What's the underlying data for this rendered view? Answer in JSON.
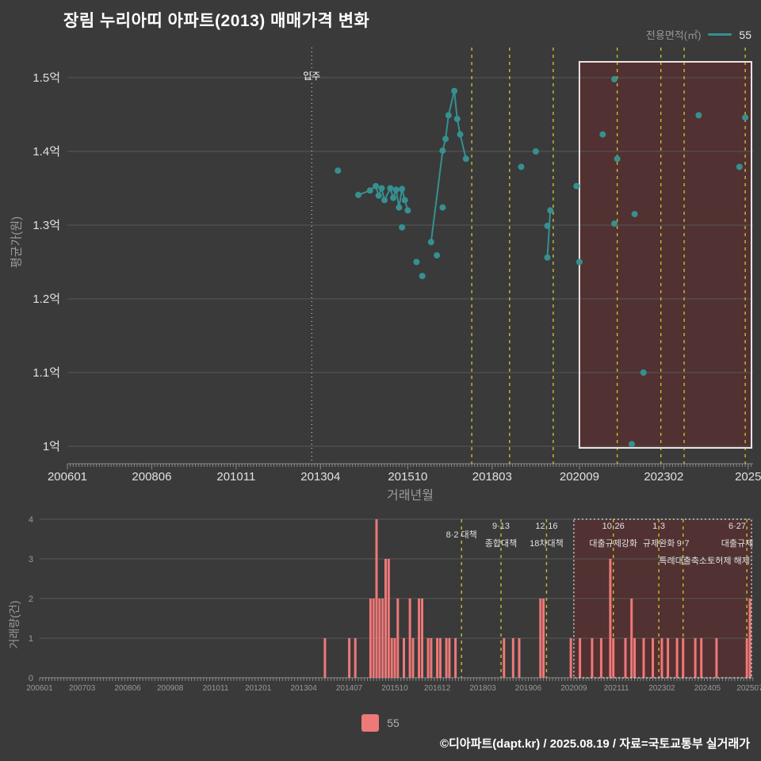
{
  "title": "장림 누리아띠 아파트(2013) 매매가격 변화",
  "top_legend": {
    "label": "전용면적(㎡)",
    "series": "55"
  },
  "bottom_legend": {
    "series": "55"
  },
  "footer": "©디아파트(dapt.kr) / 2025.08.19 / 자료=국토교통부 실거래가",
  "colors": {
    "background": "#3a3a3a",
    "series_teal": "#369090",
    "bar_salmon": "#ef7878",
    "event_yellow": "#c9bd2b",
    "grid": "#585858",
    "axis": "#8a8a8a",
    "highlight_fill": "rgba(130,30,30,0.32)",
    "highlight_border_top": "#efe2e2",
    "highlight_border_bottom": "#c8c8c8",
    "tick_label_top": "#e0e0e0",
    "tick_label_bottom": "#999999",
    "annotation_text": "#e0e0e0",
    "move_in_line": "#cccccc"
  },
  "chart_data": [
    {
      "type": "scatter",
      "name": "price-history",
      "xlabel": "거래년월",
      "ylabel": "평균가(원)",
      "series": "55",
      "x_ticks": [
        {
          "ym": "200601",
          "label": "200601"
        },
        {
          "ym": "200806",
          "label": "200806"
        },
        {
          "ym": "201011",
          "label": "201011"
        },
        {
          "ym": "201304",
          "label": "201304"
        },
        {
          "ym": "201510",
          "label": "201510"
        },
        {
          "ym": "201803",
          "label": "201803"
        },
        {
          "ym": "202009",
          "label": "202009"
        },
        {
          "ym": "202302",
          "label": "202302"
        },
        {
          "ym": "202507",
          "label": "2025"
        }
      ],
      "y_ticks": [
        {
          "value": 1.0,
          "label": "1억"
        },
        {
          "value": 1.1,
          "label": "1.1억"
        },
        {
          "value": 1.2,
          "label": "1.2억"
        },
        {
          "value": 1.3,
          "label": "1.3억"
        },
        {
          "value": 1.4,
          "label": "1.4억"
        },
        {
          "value": 1.5,
          "label": "1.5억"
        }
      ],
      "ylim": [
        0.975,
        1.545
      ],
      "xlim": [
        "200601",
        "202508"
      ],
      "grid": true,
      "move_in_line": {
        "ym": "201301",
        "label": "입주"
      },
      "highlight_box": {
        "from_ym": "202009",
        "to_ym": "202508"
      },
      "event_lines": [
        "201708",
        "201809",
        "201912",
        "202110",
        "202301",
        "202309",
        "202506"
      ],
      "points": [
        [
          "201310",
          1.374
        ],
        [
          "201405",
          1.341
        ],
        [
          "201409",
          1.347
        ],
        [
          "201411",
          1.353
        ],
        [
          "201412",
          1.34
        ],
        [
          "201501",
          1.35
        ],
        [
          "201502",
          1.334
        ],
        [
          "201504",
          1.35
        ],
        [
          "201505",
          1.337
        ],
        [
          "201506",
          1.348
        ],
        [
          "201507",
          1.324
        ],
        [
          "201508",
          1.349
        ],
        [
          "201509",
          1.334
        ],
        [
          "201510",
          1.32
        ],
        [
          "201508",
          1.297
        ],
        [
          "201601",
          1.25
        ],
        [
          "201603",
          1.231
        ],
        [
          "201606",
          1.277
        ],
        [
          "201608",
          1.259
        ],
        [
          "201610",
          1.324
        ],
        [
          "201610",
          1.401
        ],
        [
          "201611",
          1.417
        ],
        [
          "201612",
          1.449
        ],
        [
          "201702",
          1.482
        ],
        [
          "201703",
          1.444
        ],
        [
          "201704",
          1.423
        ],
        [
          "201706",
          1.39
        ],
        [
          "201901",
          1.379
        ],
        [
          "201906",
          1.4
        ],
        [
          "201910",
          1.299
        ],
        [
          "201910",
          1.256
        ],
        [
          "201911",
          1.32
        ],
        [
          "202008",
          1.353
        ],
        [
          "202009",
          1.25
        ],
        [
          "202105",
          1.423
        ],
        [
          "202109",
          1.498
        ],
        [
          "202109",
          1.302
        ],
        [
          "202110",
          1.39
        ],
        [
          "202203",
          1.003
        ],
        [
          "202204",
          1.315
        ],
        [
          "202207",
          1.1
        ],
        [
          "202402",
          1.449
        ],
        [
          "202504",
          1.379
        ],
        [
          "202506",
          1.446
        ]
      ],
      "line_segments": [
        [
          [
            "201405",
            1.341
          ],
          [
            "201409",
            1.347
          ],
          [
            "201411",
            1.353
          ],
          [
            "201412",
            1.34
          ],
          [
            "201501",
            1.35
          ],
          [
            "201502",
            1.334
          ],
          [
            "201504",
            1.35
          ],
          [
            "201505",
            1.337
          ],
          [
            "201506",
            1.348
          ],
          [
            "201507",
            1.324
          ],
          [
            "201508",
            1.349
          ],
          [
            "201509",
            1.334
          ],
          [
            "201510",
            1.32
          ]
        ],
        [
          [
            "201606",
            1.277
          ],
          [
            "201610",
            1.401
          ],
          [
            "201611",
            1.417
          ],
          [
            "201612",
            1.449
          ],
          [
            "201702",
            1.482
          ],
          [
            "201703",
            1.444
          ],
          [
            "201704",
            1.423
          ],
          [
            "201706",
            1.39
          ]
        ],
        [
          [
            "201910",
            1.256
          ],
          [
            "201911",
            1.32
          ]
        ]
      ]
    },
    {
      "type": "bar",
      "name": "transaction-volume",
      "ylabel": "거래량(건)",
      "series": "55",
      "y_ticks": [
        0,
        1,
        2,
        3,
        4
      ],
      "ylim": [
        0,
        4
      ],
      "x_ticks": [
        "200601",
        "200703",
        "200806",
        "200908",
        "201011",
        "201201",
        "201304",
        "201407",
        "201510",
        "201612",
        "201803",
        "201906",
        "202009",
        "202111",
        "202302",
        "202405",
        "202507"
      ],
      "xlim": [
        "200601",
        "202508"
      ],
      "grid": true,
      "highlight_box": {
        "from_ym": "202009",
        "to_ym": "202508"
      },
      "event_lines": [
        "201708",
        "201809",
        "201912",
        "202110",
        "202301",
        "202309",
        "202506"
      ],
      "bars": [
        [
          "201311",
          1
        ],
        [
          "201407",
          1
        ],
        [
          "201409",
          1
        ],
        [
          "201502",
          2
        ],
        [
          "201503",
          2
        ],
        [
          "201504",
          4
        ],
        [
          "201505",
          2
        ],
        [
          "201506",
          2
        ],
        [
          "201507",
          3
        ],
        [
          "201508",
          3
        ],
        [
          "201509",
          1
        ],
        [
          "201510",
          1
        ],
        [
          "201511",
          2
        ],
        [
          "201601",
          1
        ],
        [
          "201603",
          2
        ],
        [
          "201604",
          1
        ],
        [
          "201606",
          2
        ],
        [
          "201607",
          2
        ],
        [
          "201609",
          1
        ],
        [
          "201610",
          1
        ],
        [
          "201612",
          1
        ],
        [
          "201701",
          1
        ],
        [
          "201703",
          1
        ],
        [
          "201704",
          1
        ],
        [
          "201706",
          1
        ],
        [
          "201810",
          1
        ],
        [
          "201901",
          1
        ],
        [
          "201903",
          1
        ],
        [
          "201910",
          2
        ],
        [
          "201911",
          2
        ],
        [
          "202008",
          1
        ],
        [
          "202011",
          1
        ],
        [
          "202103",
          1
        ],
        [
          "202106",
          1
        ],
        [
          "202109",
          3
        ],
        [
          "202110",
          1
        ],
        [
          "202202",
          1
        ],
        [
          "202204",
          2
        ],
        [
          "202205",
          1
        ],
        [
          "202208",
          1
        ],
        [
          "202211",
          1
        ],
        [
          "202302",
          1
        ],
        [
          "202304",
          1
        ],
        [
          "202307",
          1
        ],
        [
          "202309",
          1
        ],
        [
          "202401",
          1
        ],
        [
          "202403",
          1
        ],
        [
          "202408",
          1
        ],
        [
          "202506",
          1
        ],
        [
          "202507",
          2
        ]
      ],
      "annotations": [
        {
          "ym": "201708",
          "rows": [
            {
              "text": "8·2 대책",
              "row": 1.5
            }
          ]
        },
        {
          "ym": "201809",
          "rows": [
            {
              "text": "9·13",
              "row": 1
            },
            {
              "text": "종합대책",
              "row": 2
            }
          ]
        },
        {
          "ym": "201912",
          "rows": [
            {
              "text": "12·16",
              "row": 1
            },
            {
              "text": "18차대책",
              "row": 2
            }
          ]
        },
        {
          "ym": "202110",
          "rows": [
            {
              "text": "10·26",
              "row": 1
            },
            {
              "text": "대출규제강화",
              "row": 2
            }
          ]
        },
        {
          "ym": "202301",
          "rows": [
            {
              "text": "1·3",
              "row": 1
            },
            {
              "text": "규제완화",
              "row": 2
            }
          ]
        },
        {
          "ym": "202309",
          "rows": [
            {
              "text": "9·7",
              "row": 2
            },
            {
              "text": "특례대출축소",
              "row": 3
            }
          ]
        },
        {
          "ym": "202506",
          "rows": [
            {
              "text": "6·27",
              "row": 1
            },
            {
              "text": "대출규제",
              "row": 2
            },
            {
              "text": "토허제 해제",
              "row": 3
            }
          ]
        }
      ]
    }
  ]
}
